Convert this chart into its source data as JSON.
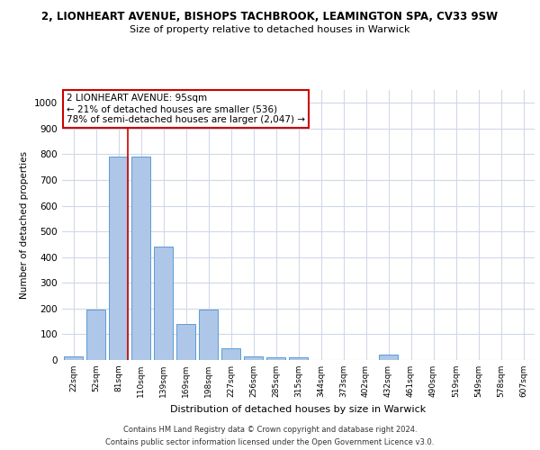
{
  "title_line1": "2, LIONHEART AVENUE, BISHOPS TACHBROOK, LEAMINGTON SPA, CV33 9SW",
  "title_line2": "Size of property relative to detached houses in Warwick",
  "xlabel": "Distribution of detached houses by size in Warwick",
  "ylabel": "Number of detached properties",
  "categories": [
    "22sqm",
    "52sqm",
    "81sqm",
    "110sqm",
    "139sqm",
    "169sqm",
    "198sqm",
    "227sqm",
    "256sqm",
    "285sqm",
    "315sqm",
    "344sqm",
    "373sqm",
    "402sqm",
    "432sqm",
    "461sqm",
    "490sqm",
    "519sqm",
    "549sqm",
    "578sqm",
    "607sqm"
  ],
  "values": [
    15,
    195,
    790,
    790,
    440,
    140,
    195,
    45,
    15,
    10,
    10,
    0,
    0,
    0,
    20,
    0,
    0,
    0,
    0,
    0,
    0
  ],
  "bar_color": "#aec6e8",
  "bar_edge_color": "#5b9bd5",
  "grid_color": "#d0d8e8",
  "background_color": "#ffffff",
  "annotation_line1": "2 LIONHEART AVENUE: 95sqm",
  "annotation_line2": "← 21% of detached houses are smaller (536)",
  "annotation_line3": "78% of semi-detached houses are larger (2,047) →",
  "annotation_box_color": "#ffffff",
  "annotation_box_edge_color": "#cc0000",
  "property_line_color": "#cc0000",
  "ylim": [
    0,
    1050
  ],
  "yticks": [
    0,
    100,
    200,
    300,
    400,
    500,
    600,
    700,
    800,
    900,
    1000
  ],
  "footer_line1": "Contains HM Land Registry data © Crown copyright and database right 2024.",
  "footer_line2": "Contains public sector information licensed under the Open Government Licence v3.0."
}
